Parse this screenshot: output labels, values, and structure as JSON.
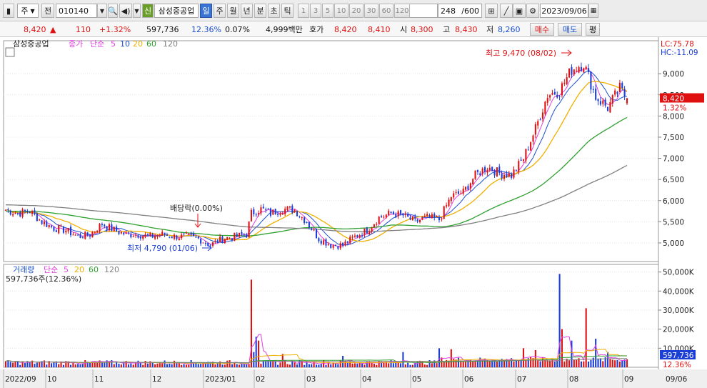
{
  "toolbar": {
    "market_type": "주",
    "prev_label": "전",
    "code": "010140",
    "badge": "신",
    "stock_name": "삼성중공업",
    "period_tabs": [
      "일",
      "주",
      "월",
      "년",
      "분",
      "초",
      "틱"
    ],
    "active_period": "일",
    "intervals": [
      "1",
      "3",
      "5",
      "10",
      "20",
      "30",
      "60",
      "120"
    ],
    "count_display": "248",
    "count_total": "/600",
    "date": "2023/09/06"
  },
  "info": {
    "price": "8,420",
    "change_arrow": "▲",
    "change": "110",
    "change_pct": "+1.32%",
    "volume": "597,736",
    "turnover_pct": "12.36%",
    "ratio": "0.07%",
    "amount": "4,999백만",
    "quote_label": "호가",
    "ask": "8,420",
    "bid": "8,410",
    "open_label": "시",
    "open": "8,300",
    "high_label": "고",
    "high": "8,430",
    "low_label": "저",
    "low": "8,260",
    "buy_label": "매수",
    "sell_label": "매도",
    "avg_label": "평"
  },
  "colors": {
    "up": "#e01010",
    "down": "#1b3fd6",
    "ma5": "#e040e0",
    "ma10": "#1b4fd0",
    "ma20": "#f0b000",
    "ma60": "#30a030",
    "ma120": "#808080",
    "last_price_box": "#e01010",
    "last_vol_box": "#1b3fd6"
  },
  "chart_data": [
    {
      "type": "candlestick",
      "legend": {
        "name": "삼성중공업",
        "price_label": "종가",
        "method": "단순",
        "periods": [
          "5",
          "10",
          "20",
          "60",
          "120"
        ]
      },
      "y_ticks": [
        "9,000",
        "8,500",
        "8,000",
        "7,500",
        "7,000",
        "6,500",
        "6,000",
        "5,500",
        "5,000"
      ],
      "ylim": [
        4560,
        9780
      ],
      "lc_label": "LC:75.78",
      "hc_label": "HC:-11.09",
      "last_price": "8,420",
      "last_change": "1.32%",
      "high_annotation": "최고 9,470 (08/02)",
      "low_annotation": "최저 4,790 (01/06)",
      "dividend_annotation": "배당락(0.00%)",
      "x_labels": [
        "2022/09",
        "10",
        "11",
        "12",
        "2023/01",
        "02",
        "03",
        "04",
        "05",
        "06",
        "07",
        "08",
        "09"
      ],
      "last_date": "09/06",
      "close_anchors": [
        [
          0,
          5780
        ],
        [
          5,
          5700
        ],
        [
          10,
          5750
        ],
        [
          15,
          5500
        ],
        [
          20,
          5350
        ],
        [
          25,
          5300
        ],
        [
          30,
          5150
        ],
        [
          35,
          5200
        ],
        [
          40,
          5450
        ],
        [
          45,
          5300
        ],
        [
          50,
          5200
        ],
        [
          55,
          5200
        ],
        [
          60,
          5150
        ],
        [
          65,
          5200
        ],
        [
          70,
          5150
        ],
        [
          75,
          5150
        ],
        [
          80,
          5100
        ],
        [
          85,
          4950
        ],
        [
          90,
          5100
        ],
        [
          95,
          5150
        ],
        [
          100,
          5200
        ],
        [
          102,
          5700
        ],
        [
          106,
          5800
        ],
        [
          110,
          5700
        ],
        [
          115,
          5800
        ],
        [
          120,
          5780
        ],
        [
          125,
          5500
        ],
        [
          130,
          5100
        ],
        [
          135,
          4950
        ],
        [
          140,
          4950
        ],
        [
          145,
          5150
        ],
        [
          150,
          5300
        ],
        [
          155,
          5600
        ],
        [
          160,
          5700
        ],
        [
          165,
          5650
        ],
        [
          170,
          5500
        ],
        [
          175,
          5600
        ],
        [
          180,
          5550
        ],
        [
          185,
          6100
        ],
        [
          190,
          6200
        ],
        [
          195,
          6600
        ],
        [
          200,
          6800
        ],
        [
          205,
          6650
        ],
        [
          210,
          6600
        ],
        [
          215,
          7000
        ],
        [
          220,
          7700
        ],
        [
          225,
          8500
        ],
        [
          230,
          8600
        ],
        [
          235,
          9100
        ],
        [
          240,
          9250
        ],
        [
          245,
          8450
        ],
        [
          250,
          8200
        ],
        [
          255,
          8650
        ],
        [
          258,
          8420
        ]
      ],
      "ma_periods": [
        5,
        10,
        20,
        60,
        120
      ]
    },
    {
      "type": "bar",
      "legend": {
        "name": "거래량",
        "method": "단순",
        "periods": [
          "5",
          "20",
          "60",
          "120"
        ]
      },
      "volume_note": "597,736주(12.36%)",
      "y_ticks": [
        "50,000K",
        "40,000K",
        "30,000K",
        "20,000K",
        "10,000K"
      ],
      "ylim": [
        0,
        54000000
      ],
      "last_volume": "597,736",
      "last_volume_pct": "12.36%",
      "spikes": [
        [
          102,
          46000000
        ],
        [
          103,
          8000000
        ],
        [
          104,
          16000000
        ],
        [
          105,
          14000000
        ],
        [
          115,
          7000000
        ],
        [
          140,
          6000000
        ],
        [
          165,
          8000000
        ],
        [
          180,
          10000000
        ],
        [
          185,
          9500000
        ],
        [
          215,
          10000000
        ],
        [
          220,
          9000000
        ],
        [
          230,
          49000000
        ],
        [
          231,
          20000000
        ],
        [
          235,
          14000000
        ],
        [
          241,
          31000000
        ],
        [
          245,
          15000000
        ],
        [
          250,
          8000000
        ]
      ]
    }
  ]
}
